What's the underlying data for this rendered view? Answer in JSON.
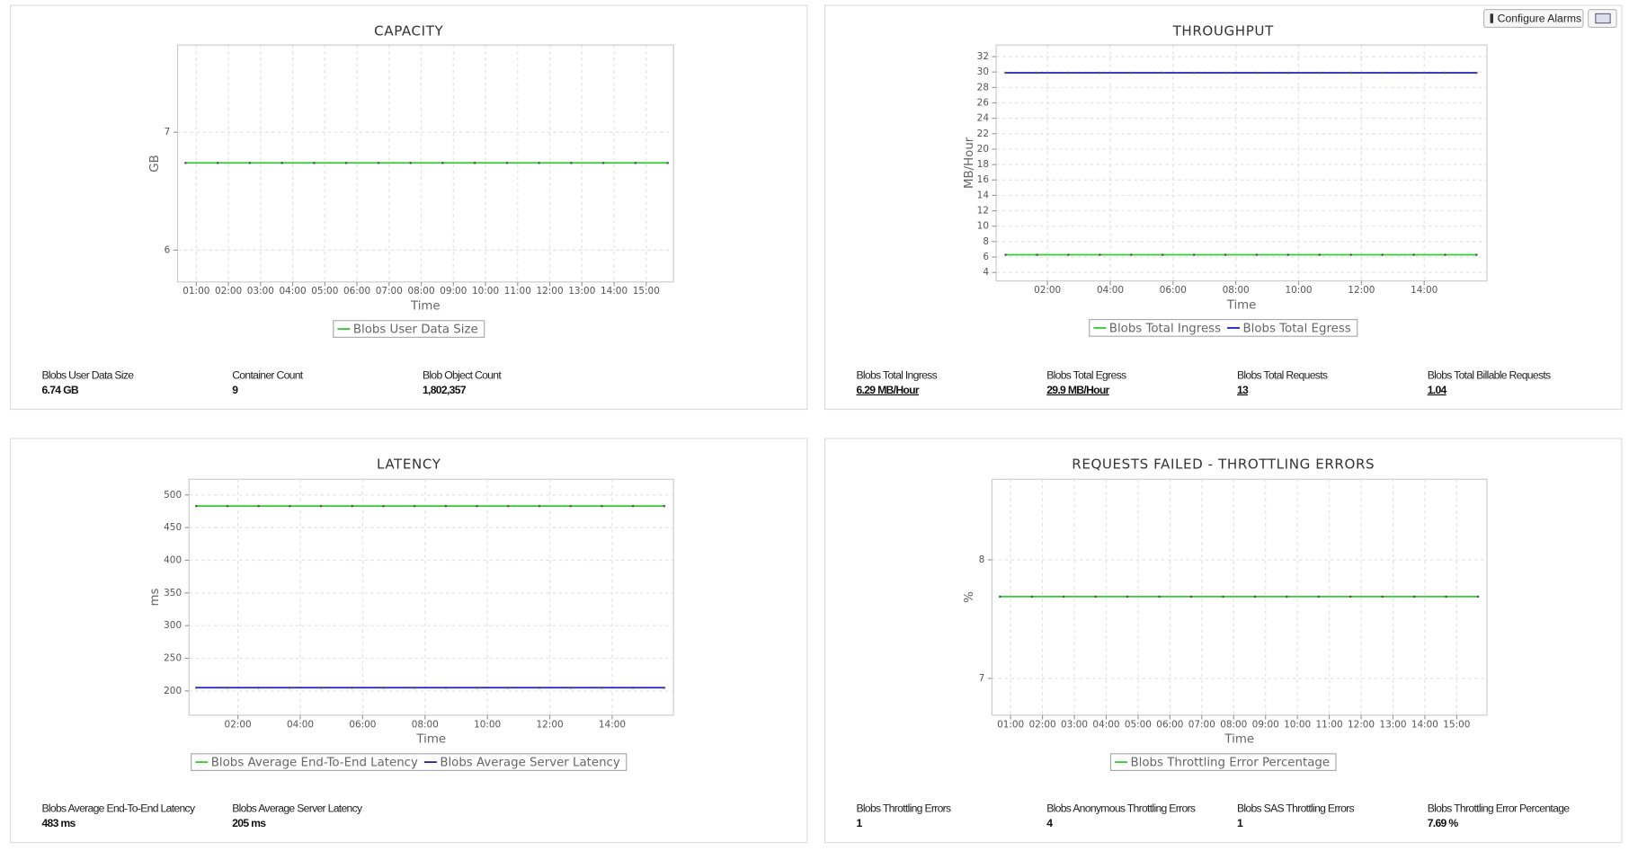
{
  "toolbar": {
    "configure_alarms": "Configure Alarms"
  },
  "chart_data": [
    {
      "type": "line",
      "title": "CAPACITY",
      "xlabel": "Time",
      "ylabel": "GB",
      "grid": true,
      "x": [
        "00:40",
        "01:40",
        "02:40",
        "03:40",
        "04:40",
        "05:40",
        "06:40",
        "07:40",
        "08:40",
        "09:40",
        "10:40",
        "11:40",
        "12:40",
        "13:40",
        "14:40",
        "15:40"
      ],
      "xlim": [
        "00:25",
        "15:51"
      ],
      "xticks": [
        "01:00",
        "02:00",
        "03:00",
        "04:00",
        "05:00",
        "06:00",
        "07:00",
        "08:00",
        "09:00",
        "10:00",
        "11:00",
        "12:00",
        "13:00",
        "14:00",
        "15:00"
      ],
      "ylim": [
        5.73,
        7.74
      ],
      "yticks": [
        6,
        7
      ],
      "series": [
        {
          "name": "Blobs User Data Size",
          "color": "#33cc33",
          "values": [
            6.74,
            6.74,
            6.74,
            6.74,
            6.74,
            6.74,
            6.74,
            6.74,
            6.74,
            6.74,
            6.74,
            6.74,
            6.74,
            6.74,
            6.74,
            6.74
          ]
        }
      ]
    },
    {
      "type": "line",
      "title": "THROUGHPUT",
      "xlabel": "Time",
      "ylabel": "MB/Hour",
      "grid": true,
      "x": [
        "00:40",
        "01:40",
        "02:40",
        "03:40",
        "04:40",
        "05:40",
        "06:40",
        "07:40",
        "08:40",
        "09:40",
        "10:40",
        "11:40",
        "12:40",
        "13:40",
        "14:40",
        "15:40"
      ],
      "xlim": [
        "00:22",
        "16:00"
      ],
      "xticks": [
        "02:00",
        "04:00",
        "06:00",
        "08:00",
        "10:00",
        "12:00",
        "14:00"
      ],
      "ylim": [
        2.9,
        33.5
      ],
      "yticks": [
        4,
        6,
        8,
        10,
        12,
        14,
        16,
        18,
        20,
        22,
        24,
        26,
        28,
        30,
        32
      ],
      "series": [
        {
          "name": "Blobs Total Ingress",
          "color": "#33cc33",
          "values": [
            6.29,
            6.29,
            6.29,
            6.29,
            6.29,
            6.29,
            6.29,
            6.29,
            6.29,
            6.29,
            6.29,
            6.29,
            6.29,
            6.29,
            6.29,
            6.29
          ]
        },
        {
          "name": "Blobs Total Egress",
          "color": "#2222bb",
          "values": [
            29.9,
            29.9,
            29.9,
            29.9,
            29.9,
            29.9,
            29.9,
            29.9,
            29.9,
            29.9,
            29.9,
            29.9,
            29.9,
            29.9,
            29.9,
            29.9
          ]
        }
      ]
    },
    {
      "type": "line",
      "title": "LATENCY",
      "xlabel": "Time",
      "ylabel": "ms",
      "grid": true,
      "x": [
        "00:40",
        "01:40",
        "02:40",
        "03:40",
        "04:40",
        "05:40",
        "06:40",
        "07:40",
        "08:40",
        "09:40",
        "10:40",
        "11:40",
        "12:40",
        "13:40",
        "14:40",
        "15:40"
      ],
      "xlim": [
        "00:26",
        "15:58"
      ],
      "xticks": [
        "02:00",
        "04:00",
        "06:00",
        "08:00",
        "10:00",
        "12:00",
        "14:00"
      ],
      "ylim": [
        163,
        524
      ],
      "yticks": [
        200,
        250,
        300,
        350,
        400,
        450,
        500
      ],
      "series": [
        {
          "name": "Blobs Average End-To-End Latency",
          "color": "#33cc33",
          "values": [
            483,
            483,
            483,
            483,
            483,
            483,
            483,
            483,
            483,
            483,
            483,
            483,
            483,
            483,
            483,
            483
          ]
        },
        {
          "name": "Blobs Average Server Latency",
          "color": "#2222bb",
          "values": [
            205,
            205,
            205,
            205,
            205,
            205,
            205,
            205,
            205,
            205,
            205,
            205,
            205,
            205,
            205,
            205
          ]
        }
      ]
    },
    {
      "type": "line",
      "title": "REQUESTS FAILED - THROTTLING ERRORS",
      "xlabel": "Time",
      "ylabel": "%",
      "grid": true,
      "x": [
        "00:40",
        "01:40",
        "02:40",
        "03:40",
        "04:40",
        "05:40",
        "06:40",
        "07:40",
        "08:40",
        "09:40",
        "10:40",
        "11:40",
        "12:40",
        "13:40",
        "14:40",
        "15:40"
      ],
      "xlim": [
        "00:25",
        "15:57"
      ],
      "xticks": [
        "01:00",
        "02:00",
        "03:00",
        "04:00",
        "05:00",
        "06:00",
        "07:00",
        "08:00",
        "09:00",
        "10:00",
        "11:00",
        "12:00",
        "13:00",
        "14:00",
        "15:00"
      ],
      "ylim": [
        6.69,
        8.68
      ],
      "yticks": [
        7,
        8
      ],
      "series": [
        {
          "name": "Blobs Throttling Error Percentage",
          "color": "#33cc33",
          "values": [
            7.69,
            7.69,
            7.69,
            7.69,
            7.69,
            7.69,
            7.69,
            7.69,
            7.69,
            7.69,
            7.69,
            7.69,
            7.69,
            7.69,
            7.69,
            7.69
          ]
        }
      ]
    }
  ],
  "stats": [
    [
      {
        "label": "Blobs User Data Size",
        "value": "6.74 GB"
      },
      {
        "label": "Container Count",
        "value": "9"
      },
      {
        "label": "Blob Object Count",
        "value": "1,802,357"
      }
    ],
    [
      {
        "label": "Blobs Total Ingress",
        "value": "6.29 MB/Hour"
      },
      {
        "label": "Blobs Total Egress",
        "value": "29.9 MB/Hour"
      },
      {
        "label": "Blobs Total Requests",
        "value": "13"
      },
      {
        "label": "Blobs Total Billable Requests",
        "value": "1.04"
      }
    ],
    [
      {
        "label": "Blobs Average End-To-End Latency",
        "value": "483 ms"
      },
      {
        "label": "Blobs Average Server Latency",
        "value": "205 ms"
      }
    ],
    [
      {
        "label": "Blobs Throttling Errors",
        "value": "1"
      },
      {
        "label": "Blobs Anonymous Throttling Errors",
        "value": "4"
      },
      {
        "label": "Blobs SAS Throttling Errors",
        "value": "1"
      },
      {
        "label": "Blobs Throttling Error Percentage",
        "value": "7.69 %"
      }
    ]
  ]
}
